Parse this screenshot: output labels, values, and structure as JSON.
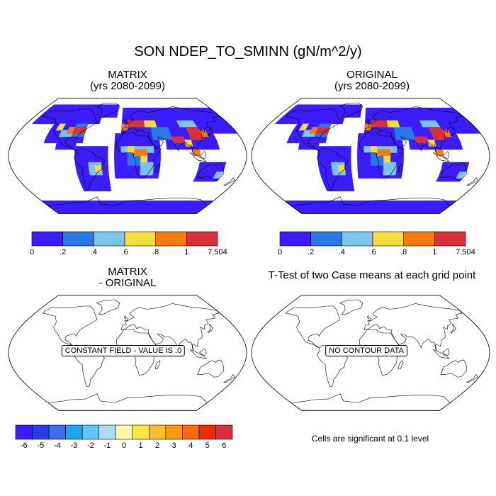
{
  "main_title": "SON NDEP_TO_SMINN (gN/m^2/y)",
  "panels": {
    "matrix": {
      "title_line1": "MATRIX",
      "title_line2": "(yrs 2080-2099)"
    },
    "original": {
      "title_line1": "ORIGINAL",
      "title_line2": "(yrs 2080-2099)"
    },
    "difference": {
      "title_line1": "MATRIX",
      "title_line2": "- ORIGINAL",
      "note": "CONSTANT FIELD - VALUE IS .0"
    },
    "ttest": {
      "title": "T-Test of two Case means at each grid point",
      "note": "NO CONTOUR DATA",
      "significance_text": "Cells are significant at 0.1 level"
    }
  },
  "colorbar_top": {
    "labels": [
      "0",
      ".2",
      ".4",
      ".6",
      ".8",
      "1",
      "7.504"
    ],
    "colors": [
      "#3b1cff",
      "#2a78e8",
      "#7cc4ec",
      "#f4dc3c",
      "#f77a10",
      "#d8303a"
    ]
  },
  "colorbar_diff": {
    "labels": [
      "-6",
      "-5",
      "-4",
      "-3",
      "-2",
      "-1",
      "0",
      "1",
      "2",
      "3",
      "4",
      "5",
      "6"
    ],
    "colors": [
      "#3b1cff",
      "#2a3ee8",
      "#3a6ee8",
      "#19a8f0",
      "#64c4f4",
      "#a8dcf4",
      "#fefaa8",
      "#fee840",
      "#fec028",
      "#fe9a10",
      "#fe6a10",
      "#f02a0a",
      "#d8303a"
    ]
  }
}
